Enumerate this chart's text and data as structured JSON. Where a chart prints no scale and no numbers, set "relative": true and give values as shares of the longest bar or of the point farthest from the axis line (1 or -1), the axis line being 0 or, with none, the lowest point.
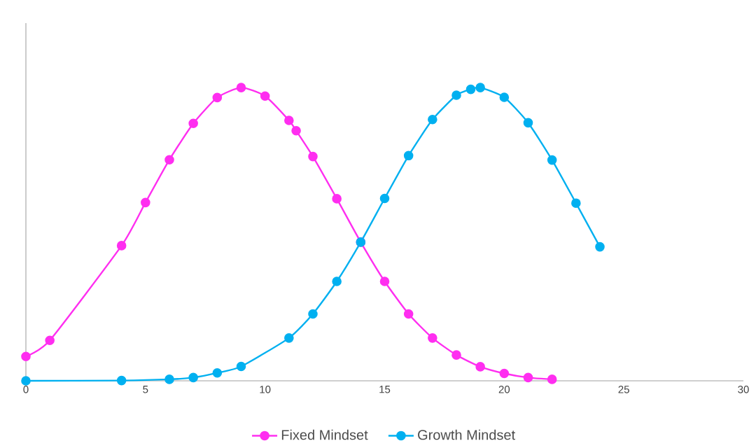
{
  "chart_data": {
    "type": "line",
    "relative": true,
    "xlim": [
      0,
      30
    ],
    "xticks": [
      0,
      5,
      10,
      15,
      20,
      25,
      30
    ],
    "tick_labels": "x",
    "legend": "bottom",
    "marker": "circle",
    "line_style": "solid",
    "series": [
      {
        "name": "Fixed Mindset",
        "color": "#ff2ef0",
        "x": [
          0,
          1,
          4,
          5,
          6,
          7,
          8,
          9,
          10,
          11,
          11.3,
          12,
          13,
          14,
          15,
          16,
          17,
          18,
          19,
          20,
          21,
          22
        ],
        "values": [
          0.083,
          0.138,
          0.461,
          0.608,
          0.754,
          0.878,
          0.966,
          1.0,
          0.971,
          0.888,
          0.853,
          0.765,
          0.621,
          0.473,
          0.339,
          0.228,
          0.146,
          0.088,
          0.048,
          0.025,
          0.011,
          0.005
        ]
      },
      {
        "name": "Growth Mindset",
        "color": "#00b0f0",
        "x": [
          0,
          4,
          6,
          7,
          8,
          9,
          11,
          12,
          13,
          14,
          15,
          16,
          17,
          18,
          18.6,
          19,
          20,
          21,
          22,
          23,
          24
        ],
        "values": [
          0.0,
          0.001,
          0.005,
          0.011,
          0.027,
          0.049,
          0.146,
          0.228,
          0.339,
          0.473,
          0.622,
          0.768,
          0.891,
          0.974,
          0.994,
          1.0,
          0.967,
          0.88,
          0.753,
          0.606,
          0.457
        ]
      }
    ]
  }
}
